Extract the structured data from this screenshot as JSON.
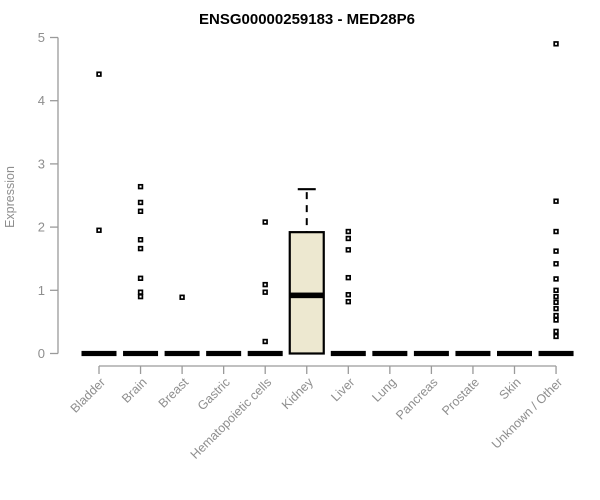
{
  "figure": {
    "title": "ENSG00000259183 - MED28P6",
    "y_axis_label": "Expression"
  },
  "chart_data": {
    "type": "boxplot",
    "title": "ENSG00000259183 - MED28P6",
    "xlabel": "",
    "ylabel": "Expression",
    "ylim": [
      0,
      5
    ],
    "yticks": [
      0,
      1,
      2,
      3,
      4,
      5
    ],
    "grid": false,
    "legend": null,
    "marker_style": "open-square",
    "categories": [
      "Bladder",
      "Brain",
      "Breast",
      "Gastric",
      "Hematopoietic cells",
      "Kidney",
      "Liver",
      "Lung",
      "Pancreas",
      "Prostate",
      "Skin",
      "Unknown / Other"
    ],
    "boxes": [
      {
        "category": "Bladder",
        "q1": 0,
        "median": 0,
        "q3": 0,
        "whisker_low": 0,
        "whisker_high": 0,
        "outliers": [
          4.42,
          1.95
        ]
      },
      {
        "category": "Brain",
        "q1": 0,
        "median": 0,
        "q3": 0,
        "whisker_low": 0,
        "whisker_high": 0,
        "outliers": [
          2.64,
          2.39,
          2.25,
          1.8,
          1.66,
          1.19,
          0.97,
          0.9
        ]
      },
      {
        "category": "Breast",
        "q1": 0,
        "median": 0,
        "q3": 0,
        "whisker_low": 0,
        "whisker_high": 0,
        "outliers": [
          0.89
        ]
      },
      {
        "category": "Gastric",
        "q1": 0,
        "median": 0,
        "q3": 0,
        "whisker_low": 0,
        "whisker_high": 0,
        "outliers": []
      },
      {
        "category": "Hematopoietic cells",
        "q1": 0,
        "median": 0,
        "q3": 0,
        "whisker_low": 0,
        "whisker_high": 0,
        "outliers": [
          2.08,
          1.09,
          0.97,
          0.19
        ]
      },
      {
        "category": "Kidney",
        "q1": 0,
        "median": 0.92,
        "q3": 1.92,
        "whisker_low": 0,
        "whisker_high": 2.6,
        "outliers": []
      },
      {
        "category": "Liver",
        "q1": 0,
        "median": 0,
        "q3": 0,
        "whisker_low": 0,
        "whisker_high": 0,
        "outliers": [
          1.93,
          1.82,
          1.64,
          1.2,
          0.93,
          0.82
        ]
      },
      {
        "category": "Lung",
        "q1": 0,
        "median": 0,
        "q3": 0,
        "whisker_low": 0,
        "whisker_high": 0,
        "outliers": []
      },
      {
        "category": "Pancreas",
        "q1": 0,
        "median": 0,
        "q3": 0,
        "whisker_low": 0,
        "whisker_high": 0,
        "outliers": []
      },
      {
        "category": "Prostate",
        "q1": 0,
        "median": 0,
        "q3": 0,
        "whisker_low": 0,
        "whisker_high": 0,
        "outliers": []
      },
      {
        "category": "Skin",
        "q1": 0,
        "median": 0,
        "q3": 0,
        "whisker_low": 0,
        "whisker_high": 0,
        "outliers": []
      },
      {
        "category": "Unknown / Other",
        "q1": 0,
        "median": 0,
        "q3": 0,
        "whisker_low": 0,
        "whisker_high": 0,
        "outliers": [
          4.9,
          2.41,
          1.93,
          1.62,
          1.42,
          1.18,
          1.0,
          0.9,
          0.81,
          0.71,
          0.6,
          0.53,
          0.35,
          0.27
        ]
      }
    ],
    "colors": {
      "box_fill": "#EDE8D0",
      "box_border": "#000000",
      "median_color": "#000000",
      "point_color": "#000000",
      "axis_line": "#9a9a9a",
      "axis_text": "#8e8e8e",
      "title_color": "#000000",
      "background": "#ffffff"
    }
  }
}
